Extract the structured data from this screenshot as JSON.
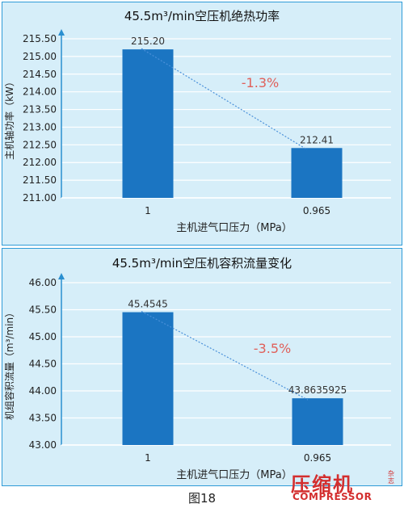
{
  "chart_data": [
    {
      "type": "bar",
      "title": "45.5m³/min空压机绝热功率",
      "xlabel": "主机进气口压力（MPa）",
      "ylabel": "主机轴功率（kW）",
      "categories": [
        "1",
        "0.965"
      ],
      "values": [
        215.2,
        212.41
      ],
      "value_labels": [
        "215.20",
        "212.41"
      ],
      "ylim": [
        211.0,
        215.5
      ],
      "yticks": [
        "211.00",
        "211.50",
        "212.00",
        "212.50",
        "213.00",
        "213.50",
        "214.00",
        "214.50",
        "215.00",
        "215.50"
      ],
      "change_label": "-1.3%",
      "grid": true,
      "bar_color": "#1b75c2"
    },
    {
      "type": "bar",
      "title": "45.5m³/min空压机容积流量变化",
      "xlabel": "主机进气口压力（MPa）",
      "ylabel": "机组容积流量（m³/min）",
      "categories": [
        "1",
        "0.965"
      ],
      "values": [
        45.4545,
        43.8635925
      ],
      "value_labels": [
        "45.4545",
        "43.8635925"
      ],
      "ylim": [
        43.0,
        46.0
      ],
      "yticks": [
        "43.00",
        "43.50",
        "44.00",
        "44.50",
        "45.00",
        "45.50",
        "46.00"
      ],
      "change_label": "-3.5%",
      "grid": true,
      "bar_color": "#1b75c2"
    }
  ],
  "caption": "图18",
  "logo": {
    "cn": "压缩机",
    "en": "COMPRESSOR",
    "small": "杂志"
  },
  "colors": {
    "frame": "#2f9bd7",
    "background": "#d6eef9",
    "change": "#e0605a",
    "trend": "#4a90d9"
  }
}
